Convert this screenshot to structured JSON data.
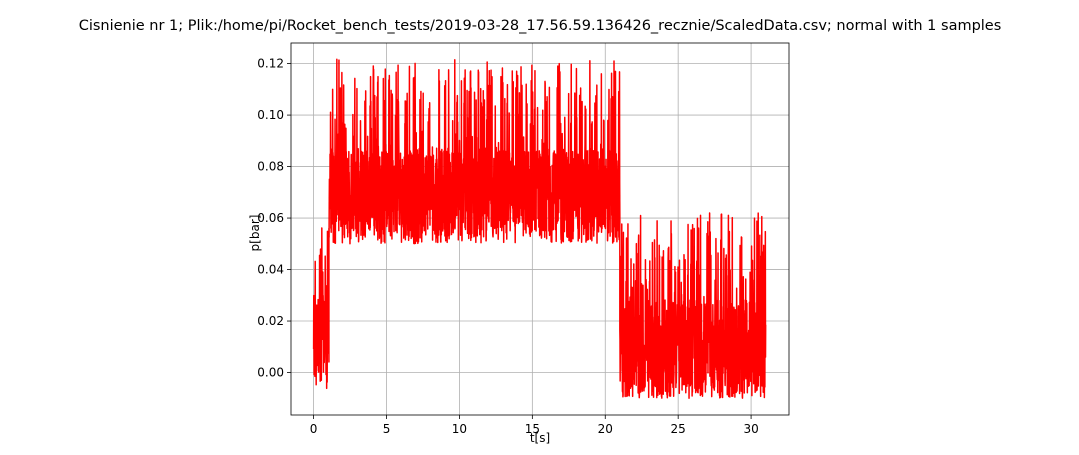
{
  "chart_data": {
    "type": "line",
    "title": "Cisnienie nr 1; Plik:/home/pi/Rocket_bench_tests/2019-03-28_17.56.59.136426_recznie/ScaledData.csv; normal with 1 samples",
    "xlabel": "t[s]",
    "ylabel": "p[bar]",
    "xlim": [
      -1.55,
      32.6
    ],
    "ylim": [
      -0.0165,
      0.128
    ],
    "xticks": [
      0,
      5,
      10,
      15,
      20,
      25,
      30
    ],
    "xtick_labels": [
      "0",
      "5",
      "10",
      "15",
      "20",
      "25",
      "30"
    ],
    "yticks": [
      0.0,
      0.02,
      0.04,
      0.06,
      0.08,
      0.1,
      0.12
    ],
    "ytick_labels": [
      "0.00",
      "0.02",
      "0.04",
      "0.06",
      "0.08",
      "0.10",
      "0.12"
    ],
    "grid": true,
    "line_color": "#ff0000",
    "series": [
      {
        "segments": [
          {
            "t_start": 0.0,
            "t_end": 1.05,
            "low": -0.007,
            "mid_low": 0.0,
            "mid_high": 0.03,
            "high": 0.058
          },
          {
            "t_start": 1.05,
            "t_end": 21.0,
            "low": 0.05,
            "mid_low": 0.055,
            "mid_high": 0.087,
            "high": 0.122
          },
          {
            "t_start": 21.0,
            "t_end": 31.0,
            "low": -0.01,
            "mid_low": -0.007,
            "mid_high": 0.028,
            "high": 0.062
          }
        ]
      }
    ]
  }
}
